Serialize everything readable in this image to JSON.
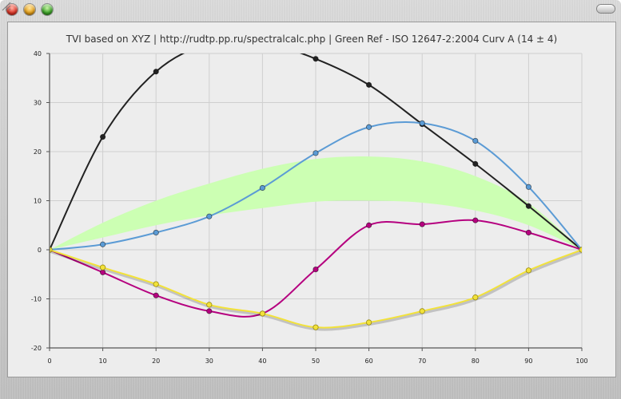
{
  "window": {
    "controls": [
      "close-icon",
      "minimize-icon",
      "zoom-icon"
    ]
  },
  "chart_data": {
    "type": "line",
    "title": "TVI based on XYZ | http://rudtp.pp.ru/spectralcalc.php | Green Ref - ISO 12647-2:2004 Curv A (14 ± 4)",
    "xlabel": "",
    "ylabel": "",
    "xlim": [
      0,
      100
    ],
    "ylim": [
      -20,
      40
    ],
    "x_ticks": [
      0,
      10,
      20,
      30,
      40,
      50,
      60,
      70,
      80,
      90,
      100
    ],
    "y_ticks": [
      -20,
      -10,
      0,
      10,
      20,
      30,
      40
    ],
    "grid": true,
    "x": [
      0,
      10,
      20,
      30,
      40,
      50,
      60,
      70,
      80,
      90,
      100
    ],
    "tolerance_band": {
      "color": "#ccffb3",
      "upper": [
        0,
        5.5,
        10,
        13.5,
        16.5,
        18.5,
        19,
        18,
        15,
        9.5,
        0
      ],
      "lower": [
        0,
        2.5,
        5,
        7,
        8.5,
        9.8,
        10,
        9.6,
        8,
        5,
        0
      ]
    },
    "series": [
      {
        "color": "#222222",
        "values": [
          0,
          23,
          36.3,
          42,
          42.3,
          38.9,
          33.6,
          25.6,
          17.5,
          8.9,
          0
        ]
      },
      {
        "color": "#5b9bd5",
        "values": [
          0,
          1.1,
          3.5,
          6.8,
          12.6,
          19.7,
          25,
          25.8,
          22.2,
          12.8,
          0
        ]
      },
      {
        "color": "#b5007f",
        "values": [
          0,
          -4.6,
          -9.3,
          -12.5,
          -13,
          -4,
          5,
          5.2,
          6,
          3.5,
          0
        ]
      },
      {
        "color": "#f2e23a",
        "values": [
          0,
          -3.6,
          -7,
          -11.2,
          -13,
          -15.8,
          -14.8,
          -12.5,
          -9.7,
          -4.2,
          0
        ]
      }
    ]
  }
}
